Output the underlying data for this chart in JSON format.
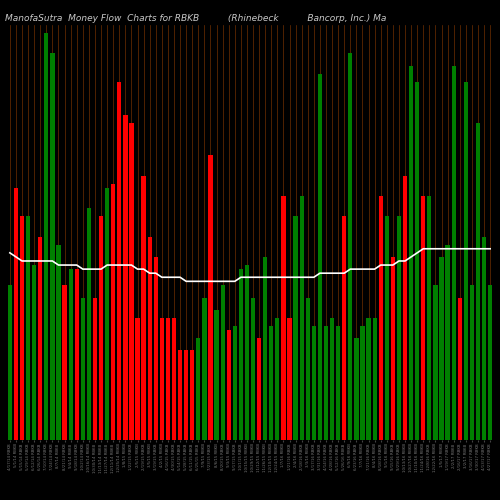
{
  "title": "ManofaSutra  Money Flow  Charts for RBKB          (Rhinebeck          Bancorp, Inc.) Ma",
  "background_color": "#000000",
  "bar_colors": [
    "green",
    "red",
    "red",
    "green",
    "green",
    "red",
    "green",
    "green",
    "green",
    "red",
    "green",
    "red",
    "green",
    "green",
    "red",
    "red",
    "green",
    "red",
    "red",
    "red",
    "red",
    "red",
    "red",
    "red",
    "red",
    "red",
    "red",
    "red",
    "red",
    "red",
    "red",
    "green",
    "green",
    "red",
    "green",
    "green",
    "red",
    "green",
    "green",
    "green",
    "green",
    "red",
    "green",
    "green",
    "green",
    "red",
    "red",
    "green",
    "green",
    "green",
    "green",
    "green",
    "green",
    "green",
    "green",
    "red",
    "green",
    "green",
    "green",
    "green",
    "green",
    "red",
    "green",
    "red",
    "green",
    "red",
    "green",
    "green",
    "red",
    "green",
    "green",
    "green",
    "green",
    "green",
    "red",
    "green",
    "green",
    "green",
    "green",
    "green"
  ],
  "bar_values": [
    0.38,
    0.62,
    0.55,
    0.55,
    0.43,
    0.5,
    1.0,
    0.95,
    0.48,
    0.38,
    0.42,
    0.42,
    0.35,
    0.57,
    0.35,
    0.55,
    0.62,
    0.63,
    0.88,
    0.8,
    0.78,
    0.3,
    0.65,
    0.5,
    0.45,
    0.3,
    0.3,
    0.3,
    0.22,
    0.22,
    0.22,
    0.25,
    0.35,
    0.7,
    0.32,
    0.38,
    0.27,
    0.28,
    0.42,
    0.43,
    0.35,
    0.25,
    0.45,
    0.28,
    0.3,
    0.6,
    0.3,
    0.55,
    0.6,
    0.35,
    0.28,
    0.9,
    0.28,
    0.3,
    0.28,
    0.55,
    0.95,
    0.25,
    0.28,
    0.3,
    0.3,
    0.6,
    0.55,
    0.45,
    0.55,
    0.65,
    0.92,
    0.88,
    0.6,
    0.6,
    0.38,
    0.45,
    0.48,
    0.92,
    0.35,
    0.88,
    0.38,
    0.78,
    0.5,
    0.38
  ],
  "ma_values": [
    0.46,
    0.45,
    0.44,
    0.44,
    0.44,
    0.44,
    0.44,
    0.44,
    0.43,
    0.43,
    0.43,
    0.43,
    0.42,
    0.42,
    0.42,
    0.42,
    0.43,
    0.43,
    0.43,
    0.43,
    0.43,
    0.42,
    0.42,
    0.41,
    0.41,
    0.4,
    0.4,
    0.4,
    0.4,
    0.39,
    0.39,
    0.39,
    0.39,
    0.39,
    0.39,
    0.39,
    0.39,
    0.39,
    0.4,
    0.4,
    0.4,
    0.4,
    0.4,
    0.4,
    0.4,
    0.4,
    0.4,
    0.4,
    0.4,
    0.4,
    0.4,
    0.41,
    0.41,
    0.41,
    0.41,
    0.41,
    0.42,
    0.42,
    0.42,
    0.42,
    0.42,
    0.43,
    0.43,
    0.43,
    0.44,
    0.44,
    0.45,
    0.46,
    0.47,
    0.47,
    0.47,
    0.47,
    0.47,
    0.47,
    0.47,
    0.47,
    0.47,
    0.47,
    0.47,
    0.47
  ],
  "ma_line_color": "#ffffff",
  "title_color": "#c8c8c8",
  "title_fontsize": 6.5,
  "dates": [
    "4/17/14 RBKB",
    "5/1/14 RBKB",
    "5/15/14 RBKB",
    "5/29/14 RBKB",
    "6/12/14 RBKB",
    "6/26/14 RBKB",
    "7/10/14 RBKB",
    "7/24/14 RBKB",
    "8/7/14 RBKB",
    "8/21/14 RBKB",
    "9/4/14 RBKB",
    "9/18/14 RBKB",
    "10/2/14 RBKB",
    "10/16/14 RBKB",
    "10/30/14 RBKB",
    "11/13/14 RBKB",
    "11/27/14 RBKB",
    "12/11/14 RBKB",
    "12/25/14 RBKB",
    "1/8/15 RBKB",
    "1/22/15 RBKB",
    "2/5/15 RBKB",
    "2/19/15 RBKB",
    "3/5/15 RBKB",
    "3/19/15 RBKB",
    "4/2/15 RBKB",
    "4/16/15 RBKB",
    "4/30/15 RBKB",
    "5/14/15 RBKB",
    "5/28/15 RBKB",
    "6/11/15 RBKB",
    "6/25/15 RBKB",
    "7/9/15 RBKB",
    "7/23/15 RBKB",
    "8/6/15 RBKB",
    "8/20/15 RBKB",
    "9/3/15 RBKB",
    "9/17/15 RBKB",
    "10/1/15 RBKB",
    "10/15/15 RBKB",
    "10/29/15 RBKB",
    "11/12/15 RBKB",
    "11/26/15 RBKB",
    "12/10/15 RBKB",
    "12/24/15 RBKB",
    "1/7/16 RBKB",
    "1/21/16 RBKB",
    "2/4/16 RBKB",
    "2/18/16 RBKB",
    "3/3/16 RBKB",
    "3/17/16 RBKB",
    "3/31/16 RBKB",
    "4/14/16 RBKB",
    "4/28/16 RBKB",
    "5/12/16 RBKB",
    "5/26/16 RBKB",
    "6/9/16 RBKB",
    "6/23/16 RBKB",
    "7/7/16 RBKB",
    "7/21/16 RBKB",
    "8/4/16 RBKB",
    "8/18/16 RBKB",
    "9/1/16 RBKB",
    "9/15/16 RBKB",
    "9/29/16 RBKB",
    "10/13/16 RBKB",
    "10/27/16 RBKB",
    "11/10/16 RBKB",
    "11/24/16 RBKB",
    "12/8/16 RBKB",
    "12/22/16 RBKB",
    "1/5/17 RBKB",
    "1/19/17 RBKB",
    "2/2/17 RBKB",
    "2/16/17 RBKB",
    "3/2/17 RBKB",
    "3/16/17 RBKB",
    "3/30/17 RBKB",
    "4/13/17 RBKB",
    "4/27/17 RBKB"
  ]
}
